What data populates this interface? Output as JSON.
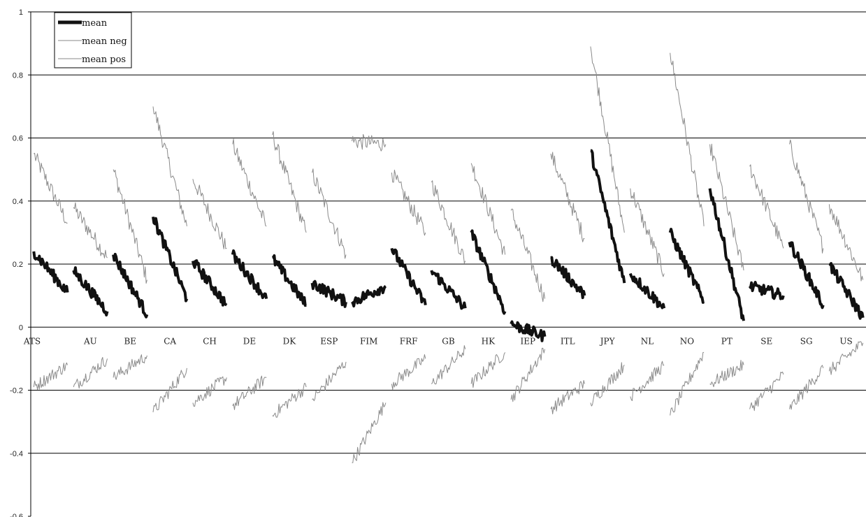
{
  "chart_data": {
    "type": "line",
    "ylim": [
      -0.6,
      1
    ],
    "yticks": [
      "1",
      "0.8",
      "0.6",
      "0.4",
      "0.2",
      "0",
      "-0.2",
      "-0.4",
      "-0.6"
    ],
    "ytick_values": [
      1,
      0.8,
      0.6,
      0.4,
      0.2,
      0,
      -0.2,
      -0.4,
      -0.6
    ],
    "categories": [
      "ATS",
      "AU",
      "BE",
      "CA",
      "CH",
      "DE",
      "DK",
      "ESP",
      "FIM",
      "FRF",
      "GB",
      "HK",
      "IEP",
      "ITL",
      "JPY",
      "NL",
      "NO",
      "PT",
      "SE",
      "SG",
      "US"
    ],
    "legend": {
      "position": "top-left",
      "entries": [
        {
          "label": "mean",
          "series": "mean"
        },
        {
          "label": "mean neg",
          "series": "mean_neg"
        },
        {
          "label": "mean pos",
          "series": "mean_pos"
        }
      ]
    },
    "grid": "horizontal",
    "colors": {
      "mean": "#111111",
      "mean_pos": "#8a8a8a",
      "mean_neg": "#8a8a8a",
      "grid": "#000000"
    },
    "segment_summary": {
      "mean": [
        [
          0.24,
          0.11
        ],
        [
          0.18,
          0.05
        ],
        [
          0.23,
          0.04
        ],
        [
          0.35,
          0.09
        ],
        [
          0.21,
          0.07
        ],
        [
          0.23,
          0.09
        ],
        [
          0.22,
          0.07
        ],
        [
          0.14,
          0.08
        ],
        [
          0.08,
          0.13
        ],
        [
          0.25,
          0.07
        ],
        [
          0.18,
          0.06
        ],
        [
          0.3,
          0.05
        ],
        [
          0.01,
          -0.03
        ],
        [
          0.22,
          0.1
        ],
        [
          0.56,
          0.14
        ],
        [
          0.17,
          0.06
        ],
        [
          0.3,
          0.08
        ],
        [
          0.44,
          0.02
        ],
        [
          0.13,
          0.1
        ],
        [
          0.27,
          0.07
        ],
        [
          0.2,
          0.03
        ]
      ],
      "mean_pos": [
        [
          0.55,
          0.33
        ],
        [
          0.38,
          0.22
        ],
        [
          0.5,
          0.15
        ],
        [
          0.7,
          0.32
        ],
        [
          0.47,
          0.25
        ],
        [
          0.58,
          0.32
        ],
        [
          0.61,
          0.3
        ],
        [
          0.49,
          0.23
        ],
        [
          0.59,
          0.58
        ],
        [
          0.49,
          0.3
        ],
        [
          0.46,
          0.21
        ],
        [
          0.52,
          0.23
        ],
        [
          0.37,
          0.09
        ],
        [
          0.55,
          0.28
        ],
        [
          0.89,
          0.3
        ],
        [
          0.44,
          0.17
        ],
        [
          0.87,
          0.32
        ],
        [
          0.58,
          0.18
        ],
        [
          0.51,
          0.25
        ],
        [
          0.58,
          0.25
        ],
        [
          0.39,
          0.15
        ]
      ],
      "mean_neg": [
        [
          -0.19,
          -0.12
        ],
        [
          -0.19,
          -0.1
        ],
        [
          -0.16,
          -0.09
        ],
        [
          -0.27,
          -0.13
        ],
        [
          -0.24,
          -0.16
        ],
        [
          -0.25,
          -0.16
        ],
        [
          -0.28,
          -0.19
        ],
        [
          -0.23,
          -0.11
        ],
        [
          -0.43,
          -0.24
        ],
        [
          -0.18,
          -0.1
        ],
        [
          -0.18,
          -0.07
        ],
        [
          -0.18,
          -0.08
        ],
        [
          -0.23,
          -0.07
        ],
        [
          -0.26,
          -0.18
        ],
        [
          -0.24,
          -0.12
        ],
        [
          -0.22,
          -0.12
        ],
        [
          -0.28,
          -0.08
        ],
        [
          -0.18,
          -0.12
        ],
        [
          -0.26,
          -0.15
        ],
        [
          -0.26,
          -0.13
        ],
        [
          -0.14,
          -0.05
        ]
      ]
    }
  }
}
